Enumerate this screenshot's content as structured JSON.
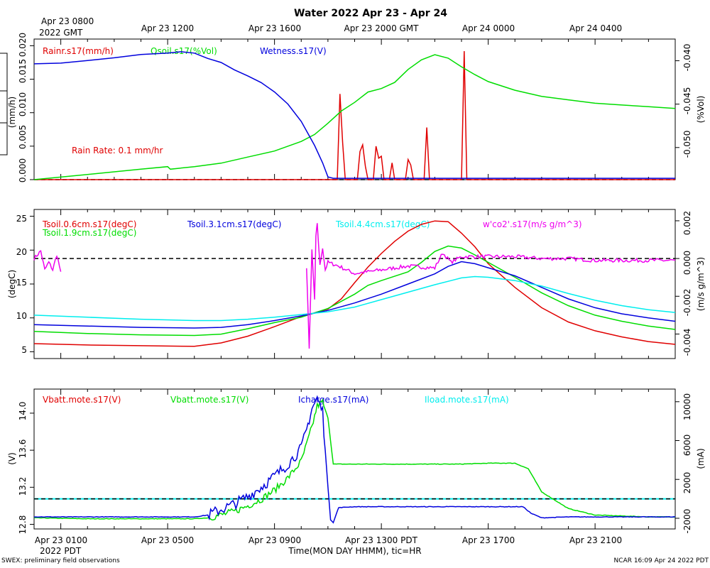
{
  "title": "Water 2022 Apr 23 - Apr 24",
  "gmt_axis": {
    "first_line1": "Apr 23 0800",
    "first_line2": "2022 GMT",
    "labels": [
      "Apr 23 1200",
      "Apr 23 1600",
      "Apr 23 2000 GMT",
      "Apr 24 0000",
      "Apr 24 0400"
    ]
  },
  "pdt_axis": {
    "labels": [
      "Apr 23 0100",
      "Apr 23 0500",
      "Apr 23 0900",
      "Apr 23 1300 PDT",
      "Apr 23 1700",
      "Apr 23 2100"
    ],
    "year_label": "2022 PDT",
    "xlabel": "Time(MON DAY HHMM), tic=HR"
  },
  "footer": {
    "left": "SWEX: preliminary field observations",
    "right": "NCAR 16:09 Apr 24 2022 PDT"
  },
  "colors": {
    "red": "#e00000",
    "green": "#00dd00",
    "blue": "#0000dd",
    "cyan": "#00eeee",
    "magenta": "#ee00ee",
    "black": "#000000"
  },
  "chart_data": [
    {
      "type": "line",
      "panel": "water",
      "x_unit": "hours since Apr 23 0000 PDT",
      "xlim": [
        0,
        24
      ],
      "left_axis": {
        "label": "(mm/h)",
        "ylim": [
          0,
          0.021
        ],
        "ticks": [
          "0.000",
          "0.005",
          "0.010",
          "0.015",
          "0.020"
        ]
      },
      "right_axis": {
        "label": "(%Vol)",
        "ylim": [
          -0.0537,
          -0.0375
        ],
        "ticks": [
          "-0.040",
          "-0.045",
          "-0.050"
        ]
      },
      "legend": [
        "Rainr.s17(mm/h)",
        "Qsoil.s17(%Vol)",
        "Wetness.s17(V)"
      ],
      "annotation": "Rain Rate: 0.1 mm/hr",
      "reference_line": 0,
      "series": [
        {
          "name": "Rainr.s17(mm/h)",
          "color": "red",
          "axis": "left",
          "x": [
            0,
            11.35,
            11.45,
            11.55,
            11.65,
            12.1,
            12.2,
            12.3,
            12.4,
            12.5,
            12.7,
            12.8,
            12.9,
            13.0,
            13.1,
            13.3,
            13.4,
            13.5,
            13.9,
            14.0,
            14.1,
            14.2,
            14.6,
            14.7,
            14.8,
            16.0,
            16.1,
            16.2,
            24
          ],
          "y": [
            0,
            0,
            0.0128,
            0.0055,
            0,
            0,
            0.0042,
            0.0052,
            0.002,
            0,
            0,
            0.005,
            0.0032,
            0.0035,
            0,
            0,
            0.0025,
            0,
            0,
            0.003,
            0.0022,
            0,
            0,
            0.0078,
            0,
            0,
            0.0192,
            0,
            0
          ]
        },
        {
          "name": "Qsoil.s17(%Vol)",
          "color": "green",
          "axis": "right",
          "x": [
            0,
            2,
            4,
            5,
            5.1,
            6,
            7,
            8,
            9,
            10,
            10.5,
            11,
            11.5,
            12,
            12.5,
            13,
            13.5,
            14,
            14.5,
            15,
            15.5,
            16,
            16.5,
            17,
            18,
            19,
            20,
            21,
            22,
            23,
            24
          ],
          "y": [
            -0.0537,
            -0.0531,
            -0.0525,
            -0.0522,
            -0.0525,
            -0.0522,
            -0.0518,
            -0.0511,
            -0.0504,
            -0.0493,
            -0.0485,
            -0.0472,
            -0.0458,
            -0.0448,
            -0.0436,
            -0.0432,
            -0.0425,
            -0.041,
            -0.0399,
            -0.0393,
            -0.0397,
            -0.0407,
            -0.0416,
            -0.0424,
            -0.0434,
            -0.0441,
            -0.0445,
            -0.0449,
            -0.0451,
            -0.0453,
            -0.0455
          ]
        },
        {
          "name": "Wetness.s17(V)",
          "color": "blue",
          "axis": "left",
          "x": [
            0,
            1,
            2,
            3,
            4,
            5,
            5.5,
            6,
            6.5,
            7,
            7.5,
            8,
            8.5,
            9,
            9.5,
            10,
            10.5,
            10.8,
            11,
            11.2,
            24
          ],
          "y": [
            0.0173,
            0.0174,
            0.0178,
            0.0182,
            0.0187,
            0.0189,
            0.0191,
            0.0189,
            0.0181,
            0.0175,
            0.0164,
            0.0155,
            0.0145,
            0.0131,
            0.0113,
            0.0087,
            0.0051,
            0.0025,
            0.0004,
            0.0002,
            0.0002
          ]
        }
      ]
    },
    {
      "type": "line",
      "panel": "temperature",
      "x_unit": "hours since Apr 23 0000 PDT",
      "xlim": [
        0,
        24
      ],
      "left_axis": {
        "label": "(degC)",
        "ylim": [
          4,
          26
        ],
        "ticks": [
          "5",
          "10",
          "15",
          "20",
          "25"
        ]
      },
      "right_axis": {
        "label": "(m/s g/m^3)",
        "ylim": [
          -0.0053,
          0.0026
        ],
        "ticks": [
          "0.002",
          "0.000",
          "-0.002",
          "-0.004"
        ]
      },
      "legend": [
        "Tsoil.0.6cm.s17(degC)",
        "Tsoil.1.9cm.s17(degC)",
        "Tsoil.3.1cm.s17(degC)",
        "Tsoil.4.4cm.s17(degC)",
        "w'co2'.s17(m/s g/m^3)"
      ],
      "reference_line": 0,
      "series": [
        {
          "name": "Tsoil.0.6cm.s17(degC)",
          "color": "red",
          "axis": "left",
          "x": [
            0,
            2,
            4,
            6,
            7,
            8,
            9,
            10,
            11,
            11.5,
            12,
            12.5,
            13,
            13.5,
            14,
            14.5,
            15,
            15.5,
            16,
            16.5,
            17,
            18,
            19,
            20,
            21,
            22,
            23,
            24
          ],
          "y": [
            6.2,
            6.0,
            5.9,
            5.8,
            6.3,
            7.3,
            8.7,
            10.2,
            11.3,
            12.8,
            15.2,
            17.5,
            19.5,
            21.3,
            22.8,
            23.8,
            24.3,
            24.2,
            22.5,
            20.5,
            18.0,
            14.5,
            11.5,
            9.4,
            8.1,
            7.2,
            6.5,
            6.1
          ]
        },
        {
          "name": "Tsoil.1.9cm.s17(degC)",
          "color": "green",
          "axis": "left",
          "x": [
            0,
            2,
            4,
            6,
            7,
            8,
            9,
            10,
            11,
            12,
            12.5,
            13,
            14,
            14.5,
            15,
            15.5,
            16,
            16.5,
            17,
            18,
            19,
            20,
            21,
            22,
            23,
            24
          ],
          "y": [
            8.0,
            7.7,
            7.5,
            7.4,
            7.6,
            8.4,
            9.3,
            10.1,
            11.4,
            13.5,
            14.8,
            15.5,
            16.8,
            18.2,
            19.8,
            20.6,
            20.3,
            19.3,
            18.2,
            16.0,
            13.7,
            11.8,
            10.4,
            9.5,
            8.8,
            8.3
          ]
        },
        {
          "name": "Tsoil.3.1cm.s17(degC)",
          "color": "blue",
          "axis": "left",
          "x": [
            0,
            2,
            4,
            6,
            7,
            8,
            9,
            10,
            11,
            12,
            13,
            14,
            15,
            15.5,
            16,
            16.5,
            17,
            18,
            19,
            20,
            21,
            22,
            23,
            24
          ],
          "y": [
            9.0,
            8.8,
            8.6,
            8.5,
            8.6,
            9.0,
            9.6,
            10.3,
            11.1,
            12.2,
            13.5,
            15.0,
            16.5,
            17.6,
            18.3,
            18.0,
            17.4,
            16.2,
            14.5,
            12.8,
            11.5,
            10.6,
            10.0,
            9.5
          ]
        },
        {
          "name": "Tsoil.4.4cm.s17(degC)",
          "color": "cyan",
          "axis": "left",
          "x": [
            0,
            2,
            4,
            6,
            7,
            8,
            9,
            10,
            11,
            12,
            13,
            14,
            15,
            16,
            16.5,
            17,
            18,
            19,
            20,
            21,
            22,
            23,
            24
          ],
          "y": [
            10.4,
            10.1,
            9.8,
            9.6,
            9.6,
            9.8,
            10.1,
            10.5,
            10.9,
            11.6,
            12.7,
            13.8,
            14.9,
            15.9,
            16.1,
            16.0,
            15.5,
            14.7,
            13.6,
            12.6,
            11.8,
            11.2,
            10.8
          ]
        },
        {
          "name": "w'co2'.s17(m/s g/m^3)",
          "color": "magenta",
          "axis": "right",
          "mode": "noisy",
          "x": [
            0,
            0.25,
            0.4,
            0.55,
            0.7,
            0.85,
            1.0,
            null,
            10.2,
            10.3,
            10.4,
            10.5,
            10.55,
            10.6,
            10.7,
            10.8,
            10.9,
            11.0,
            11.2,
            11.4,
            12,
            13,
            14,
            15,
            15.3,
            15.6,
            16,
            17,
            18,
            19,
            20,
            21,
            22,
            23,
            24
          ],
          "y": [
            0.0,
            0.0004,
            -0.0006,
            -0.0002,
            -0.0006,
            0.0002,
            -0.0007,
            null,
            -0.0006,
            -0.0047,
            0.0004,
            -0.0022,
            0.0011,
            0.0019,
            -0.0004,
            0.0006,
            -0.0006,
            -0.0002,
            -0.0003,
            -0.0004,
            -0.0008,
            -0.0006,
            -0.0004,
            -0.0005,
            0.0003,
            -0.0002,
            0.0001,
            0.0001,
            0.0001,
            0.0,
            0.0,
            -0.0001,
            -0.0001,
            -0.0001,
            -0.0001
          ]
        }
      ]
    },
    {
      "type": "line",
      "panel": "power",
      "x_unit": "hours since Apr 23 0000 PDT",
      "xlim": [
        0,
        24
      ],
      "left_axis": {
        "label": "(V)",
        "ylim": [
          12.75,
          14.26
        ],
        "ticks": [
          "12.8",
          "13.2",
          "13.6",
          "14.0"
        ]
      },
      "right_axis": {
        "label": "(mA)",
        "ylim": [
          -3100,
          11300
        ],
        "ticks": [
          "-2000",
          "2000",
          "6000",
          "10000"
        ]
      },
      "legend": [
        "Vbatt.mote.s17(V)",
        "Vbatt.mote.s17(V)",
        "Icharge.s17(mA)",
        "Iload.mote.s17(mA)"
      ],
      "reference_line": 0,
      "series": [
        {
          "name": "Vbatt.mote.s17(V)",
          "color": "red",
          "axis": "left",
          "x": [],
          "y": []
        },
        {
          "name": "Vbatt.mote.s17(V)",
          "color": "green",
          "axis": "left",
          "mode": "noisy",
          "x": [
            0,
            2,
            4,
            6,
            6.5,
            7,
            7.5,
            8,
            8.5,
            9,
            9.5,
            10,
            10.2,
            10.4,
            10.6,
            10.8,
            11,
            11.2,
            12,
            14,
            16,
            17,
            18,
            18.5,
            19,
            20,
            21,
            22,
            23,
            24
          ],
          "y": [
            12.87,
            12.86,
            12.86,
            12.86,
            12.87,
            12.9,
            12.94,
            13.0,
            13.07,
            13.17,
            13.3,
            13.48,
            13.66,
            13.85,
            14.08,
            14.12,
            13.95,
            13.45,
            13.45,
            13.45,
            13.45,
            13.46,
            13.46,
            13.4,
            13.15,
            12.97,
            12.9,
            12.89,
            12.88,
            12.88
          ]
        },
        {
          "name": "Icharge.s17(mA)",
          "color": "blue",
          "axis": "left",
          "mode": "noisy",
          "x": [
            0,
            2,
            4,
            6,
            6.5,
            7,
            7.5,
            8,
            8.5,
            9,
            9.5,
            10,
            10.2,
            10.4,
            10.6,
            10.8,
            10.9,
            11.0,
            11.1,
            11.2,
            11.4,
            12,
            14,
            16,
            17,
            18,
            18.3,
            18.6,
            19,
            20,
            21,
            22,
            23,
            24
          ],
          "y": [
            12.88,
            12.88,
            12.88,
            12.88,
            12.9,
            12.96,
            13.02,
            13.1,
            13.2,
            13.32,
            13.45,
            13.62,
            13.82,
            14.05,
            14.16,
            14.02,
            13.6,
            13.2,
            12.85,
            12.82,
            12.98,
            12.99,
            12.99,
            12.99,
            12.99,
            12.99,
            12.99,
            12.92,
            12.87,
            12.88,
            12.88,
            12.88,
            12.88,
            12.88
          ]
        },
        {
          "name": "Iload.mote.s17(mA)",
          "color": "cyan",
          "axis": "right",
          "x": [
            0,
            24
          ],
          "y": [
            0,
            0
          ]
        }
      ]
    }
  ]
}
